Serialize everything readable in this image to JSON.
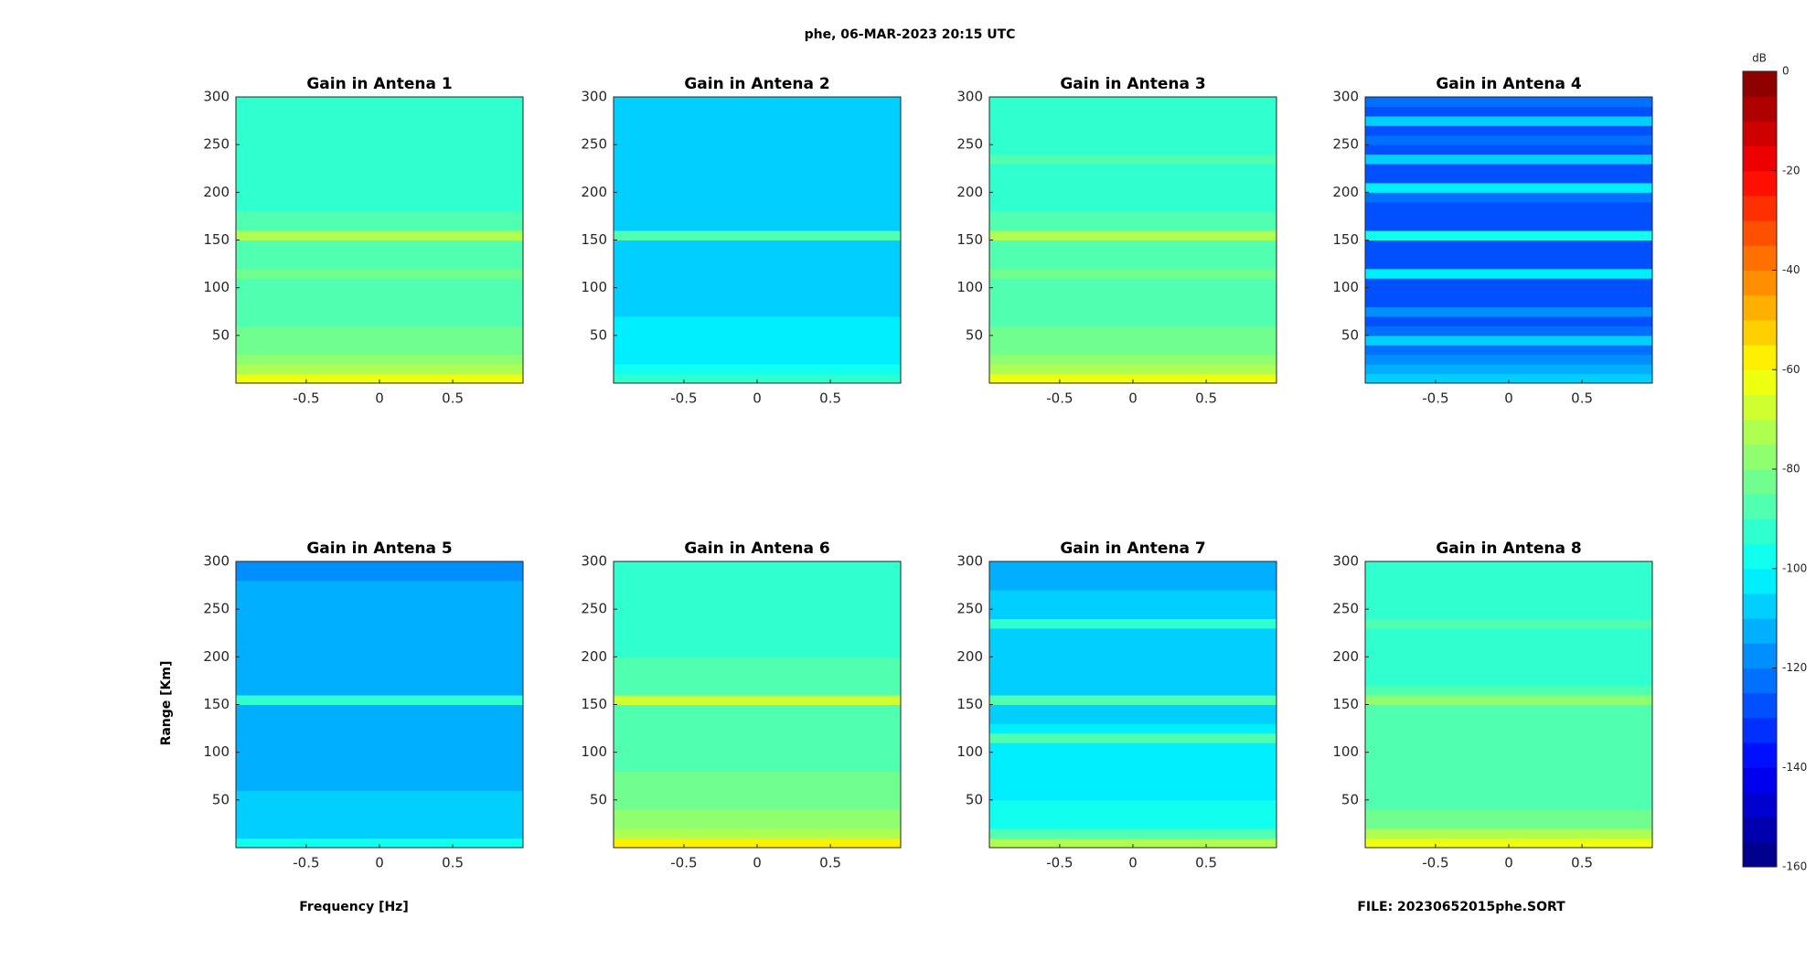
{
  "figure": {
    "title": "phe, 06-MAR-2023 20:15 UTC",
    "xlabel": "Frequency [Hz]",
    "ylabel": "Range [Km]",
    "file": "FILE: 20230652015phe.SORT"
  },
  "colorbar": {
    "label": "dB",
    "lim": [
      -160,
      0
    ],
    "ticks": [
      0,
      -20,
      -40,
      -60,
      -80,
      -100,
      -120,
      -140,
      -160
    ],
    "colormap": "jet",
    "levels": 32
  },
  "chart_data": [
    {
      "type": "heatmap",
      "title": "Gain in Antena 1",
      "xlim": [
        -0.98,
        0.98
      ],
      "xticks": [
        -0.5,
        0,
        0.5
      ],
      "ylim": [
        0,
        300
      ],
      "yticks": [
        50,
        100,
        150,
        200,
        250,
        300
      ],
      "y_bins": [
        0,
        10,
        20,
        30,
        40,
        50,
        60,
        70,
        80,
        90,
        100,
        110,
        120,
        130,
        140,
        150,
        160,
        170,
        180,
        190,
        200,
        210,
        220,
        230,
        240,
        250,
        260,
        270,
        280,
        290,
        300
      ],
      "values": [
        -62,
        -74,
        -80,
        -82,
        -84,
        -85,
        -86,
        -87,
        -87,
        -88,
        -88,
        -85,
        -86,
        -88,
        -89,
        -74,
        -88,
        -90,
        -91,
        -91,
        -92,
        -92,
        -92,
        -92,
        -93,
        -93,
        -93,
        -93,
        -93,
        -93
      ]
    },
    {
      "type": "heatmap",
      "title": "Gain in Antena 2",
      "xlim": [
        -0.98,
        0.98
      ],
      "xticks": [
        -0.5,
        0,
        0.5
      ],
      "ylim": [
        0,
        300
      ],
      "yticks": [
        50,
        100,
        150,
        200,
        250,
        300
      ],
      "y_bins": [
        0,
        10,
        20,
        30,
        40,
        50,
        60,
        70,
        80,
        90,
        100,
        110,
        120,
        130,
        140,
        150,
        160,
        170,
        180,
        190,
        200,
        210,
        220,
        230,
        240,
        250,
        260,
        270,
        280,
        290,
        300
      ],
      "values": [
        -95,
        -100,
        -102,
        -103,
        -104,
        -105,
        -105,
        -106,
        -106,
        -106,
        -106,
        -106,
        -106,
        -106,
        -106,
        -88,
        -106,
        -107,
        -108,
        -108,
        -108,
        -109,
        -109,
        -109,
        -109,
        -109,
        -109,
        -109,
        -109,
        -109
      ]
    },
    {
      "type": "heatmap",
      "title": "Gain in Antena 3",
      "xlim": [
        -0.98,
        0.98
      ],
      "xticks": [
        -0.5,
        0,
        0.5
      ],
      "ylim": [
        0,
        300
      ],
      "yticks": [
        50,
        100,
        150,
        200,
        250,
        300
      ],
      "y_bins": [
        0,
        10,
        20,
        30,
        40,
        50,
        60,
        70,
        80,
        90,
        100,
        110,
        120,
        130,
        140,
        150,
        160,
        170,
        180,
        190,
        200,
        210,
        220,
        230,
        240,
        250,
        260,
        270,
        280,
        290,
        300
      ],
      "values": [
        -62,
        -74,
        -80,
        -82,
        -84,
        -85,
        -86,
        -87,
        -87,
        -88,
        -88,
        -84,
        -88,
        -89,
        -89,
        -74,
        -88,
        -90,
        -91,
        -91,
        -92,
        -92,
        -92,
        -87,
        -93,
        -93,
        -93,
        -93,
        -93,
        -93
      ]
    },
    {
      "type": "heatmap",
      "title": "Gain in Antena 4",
      "xlim": [
        -0.98,
        0.98
      ],
      "xticks": [
        -0.5,
        0,
        0.5
      ],
      "ylim": [
        0,
        300
      ],
      "yticks": [
        50,
        100,
        150,
        200,
        250,
        300
      ],
      "y_bins": [
        0,
        10,
        20,
        30,
        40,
        50,
        60,
        70,
        80,
        90,
        100,
        110,
        120,
        130,
        140,
        150,
        160,
        170,
        180,
        190,
        200,
        210,
        220,
        230,
        240,
        250,
        260,
        270,
        280,
        290,
        300
      ],
      "values": [
        -110,
        -115,
        -120,
        -124,
        -110,
        -122,
        -126,
        -118,
        -126,
        -128,
        -128,
        -104,
        -126,
        -128,
        -126,
        -100,
        -126,
        -128,
        -128,
        -124,
        -105,
        -126,
        -128,
        -108,
        -128,
        -125,
        -128,
        -110,
        -126,
        -124
      ]
    },
    {
      "type": "heatmap",
      "title": "Gain in Antena 5",
      "xlim": [
        -0.98,
        0.98
      ],
      "xticks": [
        -0.5,
        0,
        0.5
      ],
      "ylim": [
        0,
        300
      ],
      "yticks": [
        50,
        100,
        150,
        200,
        250,
        300
      ],
      "y_bins": [
        0,
        10,
        20,
        30,
        40,
        50,
        60,
        70,
        80,
        90,
        100,
        110,
        120,
        130,
        140,
        150,
        160,
        170,
        180,
        190,
        200,
        210,
        220,
        230,
        240,
        250,
        260,
        270,
        280,
        290,
        300
      ],
      "values": [
        -100,
        -106,
        -108,
        -108,
        -110,
        -110,
        -111,
        -111,
        -111,
        -112,
        -112,
        -112,
        -112,
        -112,
        -112,
        -92,
        -112,
        -113,
        -113,
        -114,
        -114,
        -114,
        -114,
        -114,
        -114,
        -114,
        -115,
        -115,
        -116,
        -116
      ]
    },
    {
      "type": "heatmap",
      "title": "Gain in Antena 6",
      "xlim": [
        -0.98,
        0.98
      ],
      "xticks": [
        -0.5,
        0,
        0.5
      ],
      "ylim": [
        0,
        300
      ],
      "yticks": [
        50,
        100,
        150,
        200,
        250,
        300
      ],
      "y_bins": [
        0,
        10,
        20,
        30,
        40,
        50,
        60,
        70,
        80,
        90,
        100,
        110,
        120,
        130,
        140,
        150,
        160,
        170,
        180,
        190,
        200,
        210,
        220,
        230,
        240,
        250,
        260,
        270,
        280,
        290,
        300
      ],
      "values": [
        -60,
        -72,
        -78,
        -80,
        -82,
        -83,
        -84,
        -85,
        -86,
        -86,
        -87,
        -87,
        -87,
        -88,
        -88,
        -68,
        -88,
        -89,
        -90,
        -90,
        -91,
        -91,
        -91,
        -91,
        -92,
        -92,
        -92,
        -92,
        -92,
        -92
      ]
    },
    {
      "type": "heatmap",
      "title": "Gain in Antena 7",
      "xlim": [
        -0.98,
        0.98
      ],
      "xticks": [
        -0.5,
        0,
        0.5
      ],
      "ylim": [
        0,
        300
      ],
      "yticks": [
        50,
        100,
        150,
        200,
        250,
        300
      ],
      "y_bins": [
        0,
        10,
        20,
        30,
        40,
        50,
        60,
        70,
        80,
        90,
        100,
        110,
        120,
        130,
        140,
        150,
        160,
        170,
        180,
        190,
        200,
        210,
        220,
        230,
        240,
        250,
        260,
        270,
        280,
        290,
        300
      ],
      "values": [
        -75,
        -90,
        -96,
        -98,
        -100,
        -101,
        -102,
        -103,
        -104,
        -104,
        -105,
        -90,
        -104,
        -106,
        -106,
        -88,
        -106,
        -108,
        -108,
        -108,
        -106,
        -108,
        -108,
        -92,
        -109,
        -110,
        -110,
        -111,
        -111,
        -112
      ]
    },
    {
      "type": "heatmap",
      "title": "Gain in Antena 8",
      "xlim": [
        -0.98,
        0.98
      ],
      "xticks": [
        -0.5,
        0,
        0.5
      ],
      "ylim": [
        0,
        300
      ],
      "yticks": [
        50,
        100,
        150,
        200,
        250,
        300
      ],
      "y_bins": [
        0,
        10,
        20,
        30,
        40,
        50,
        60,
        70,
        80,
        90,
        100,
        110,
        120,
        130,
        140,
        150,
        160,
        170,
        180,
        190,
        200,
        210,
        220,
        230,
        240,
        250,
        260,
        270,
        280,
        290,
        300
      ],
      "values": [
        -62,
        -74,
        -82,
        -84,
        -86,
        -87,
        -88,
        -88,
        -88,
        -89,
        -89,
        -86,
        -89,
        -90,
        -90,
        -76,
        -90,
        -91,
        -92,
        -92,
        -92,
        -92,
        -93,
        -90,
        -93,
        -93,
        -94,
        -94,
        -94,
        -94
      ]
    }
  ]
}
